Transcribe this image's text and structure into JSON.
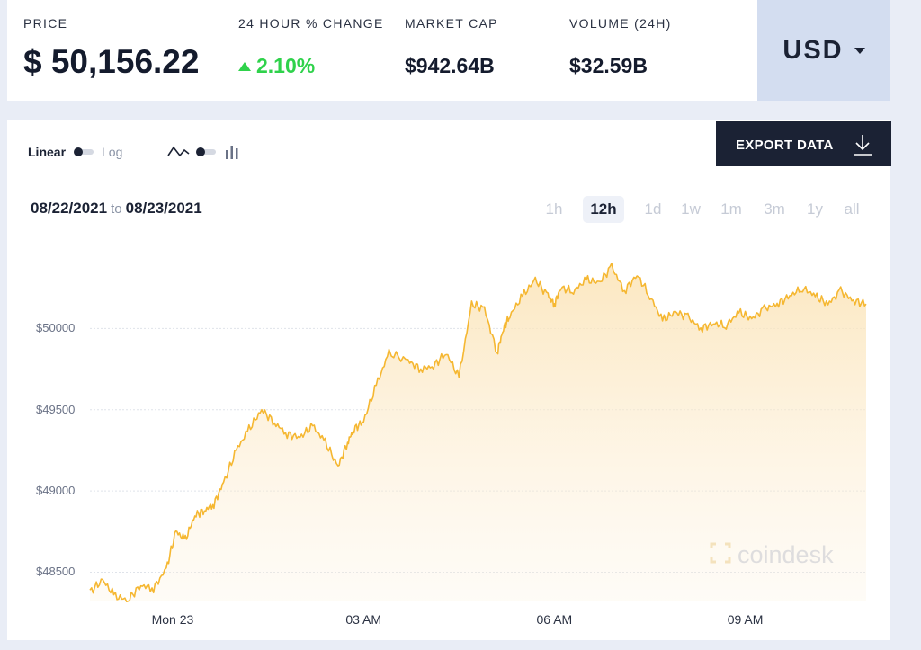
{
  "stats": {
    "price": {
      "label": "PRICE",
      "value": "$ 50,156.22"
    },
    "change": {
      "label": "24 HOUR % CHANGE",
      "value": "2.10%"
    },
    "market_cap": {
      "label": "MARKET CAP",
      "value": "$942.64B"
    },
    "volume": {
      "label": "VOLUME (24H)",
      "value": "$32.59B"
    }
  },
  "currency": {
    "selected": "USD"
  },
  "controls": {
    "linear_label": "Linear",
    "log_label": "Log",
    "export_label": "EXPORT DATA"
  },
  "date_range": {
    "from": "08/22/2021",
    "to_label": "to",
    "to": "08/23/2021"
  },
  "time_ranges": [
    "1h",
    "12h",
    "1d",
    "1w",
    "1m",
    "3m",
    "1y",
    "all"
  ],
  "active_range": "12h",
  "watermark": "coindesk",
  "colors": {
    "line": "#f5b731",
    "positive": "#2fd24b",
    "dark": "#1b2234"
  },
  "chart_data": {
    "type": "area",
    "x_tick_labels": [
      "Mon 23",
      "03 AM",
      "06 AM",
      "09 AM"
    ],
    "y_tick_labels": [
      "$48500",
      "$49000",
      "$49500",
      "$50000"
    ],
    "y_ticks": [
      48500,
      49000,
      49500,
      50000
    ],
    "ylim": [
      48320,
      50450
    ],
    "x_range_hours": [
      -1.3,
      10.9
    ],
    "grid": true,
    "series": [
      {
        "x": [
          -1.3,
          -1.1,
          -0.9,
          -0.7,
          -0.5,
          -0.3,
          -0.1,
          0.05,
          0.2,
          0.35,
          0.5,
          0.65,
          0.8,
          1.0,
          1.2,
          1.4,
          1.6,
          1.8,
          2.0,
          2.2,
          2.4,
          2.6,
          2.75,
          2.85,
          3.0,
          3.2,
          3.4,
          3.7,
          3.9,
          4.1,
          4.3,
          4.5,
          4.7,
          4.9,
          5.1,
          5.2,
          5.3,
          5.5,
          5.7,
          5.9,
          6.0,
          6.1,
          6.3,
          6.5,
          6.7,
          6.9,
          7.1,
          7.3,
          7.5,
          7.7,
          7.9,
          8.1,
          8.3,
          8.5,
          8.7,
          8.9,
          9.1,
          9.3,
          9.5,
          9.7,
          9.9,
          10.1,
          10.3,
          10.5,
          10.7,
          10.9
        ],
        "y": [
          48380,
          48450,
          48350,
          48330,
          48420,
          48400,
          48520,
          48750,
          48700,
          48850,
          48880,
          48920,
          49050,
          49250,
          49380,
          49500,
          49420,
          49350,
          49330,
          49400,
          49300,
          49150,
          49300,
          49380,
          49430,
          49650,
          49850,
          49800,
          49750,
          49770,
          49850,
          49700,
          50150,
          50120,
          49850,
          50000,
          50080,
          50200,
          50300,
          50200,
          50150,
          50250,
          50230,
          50300,
          50280,
          50380,
          50230,
          50330,
          50200,
          50050,
          50100,
          50070,
          50000,
          50030,
          50020,
          50100,
          50060,
          50120,
          50150,
          50200,
          50250,
          50200,
          50150,
          50230,
          50170,
          50150
        ]
      }
    ]
  }
}
